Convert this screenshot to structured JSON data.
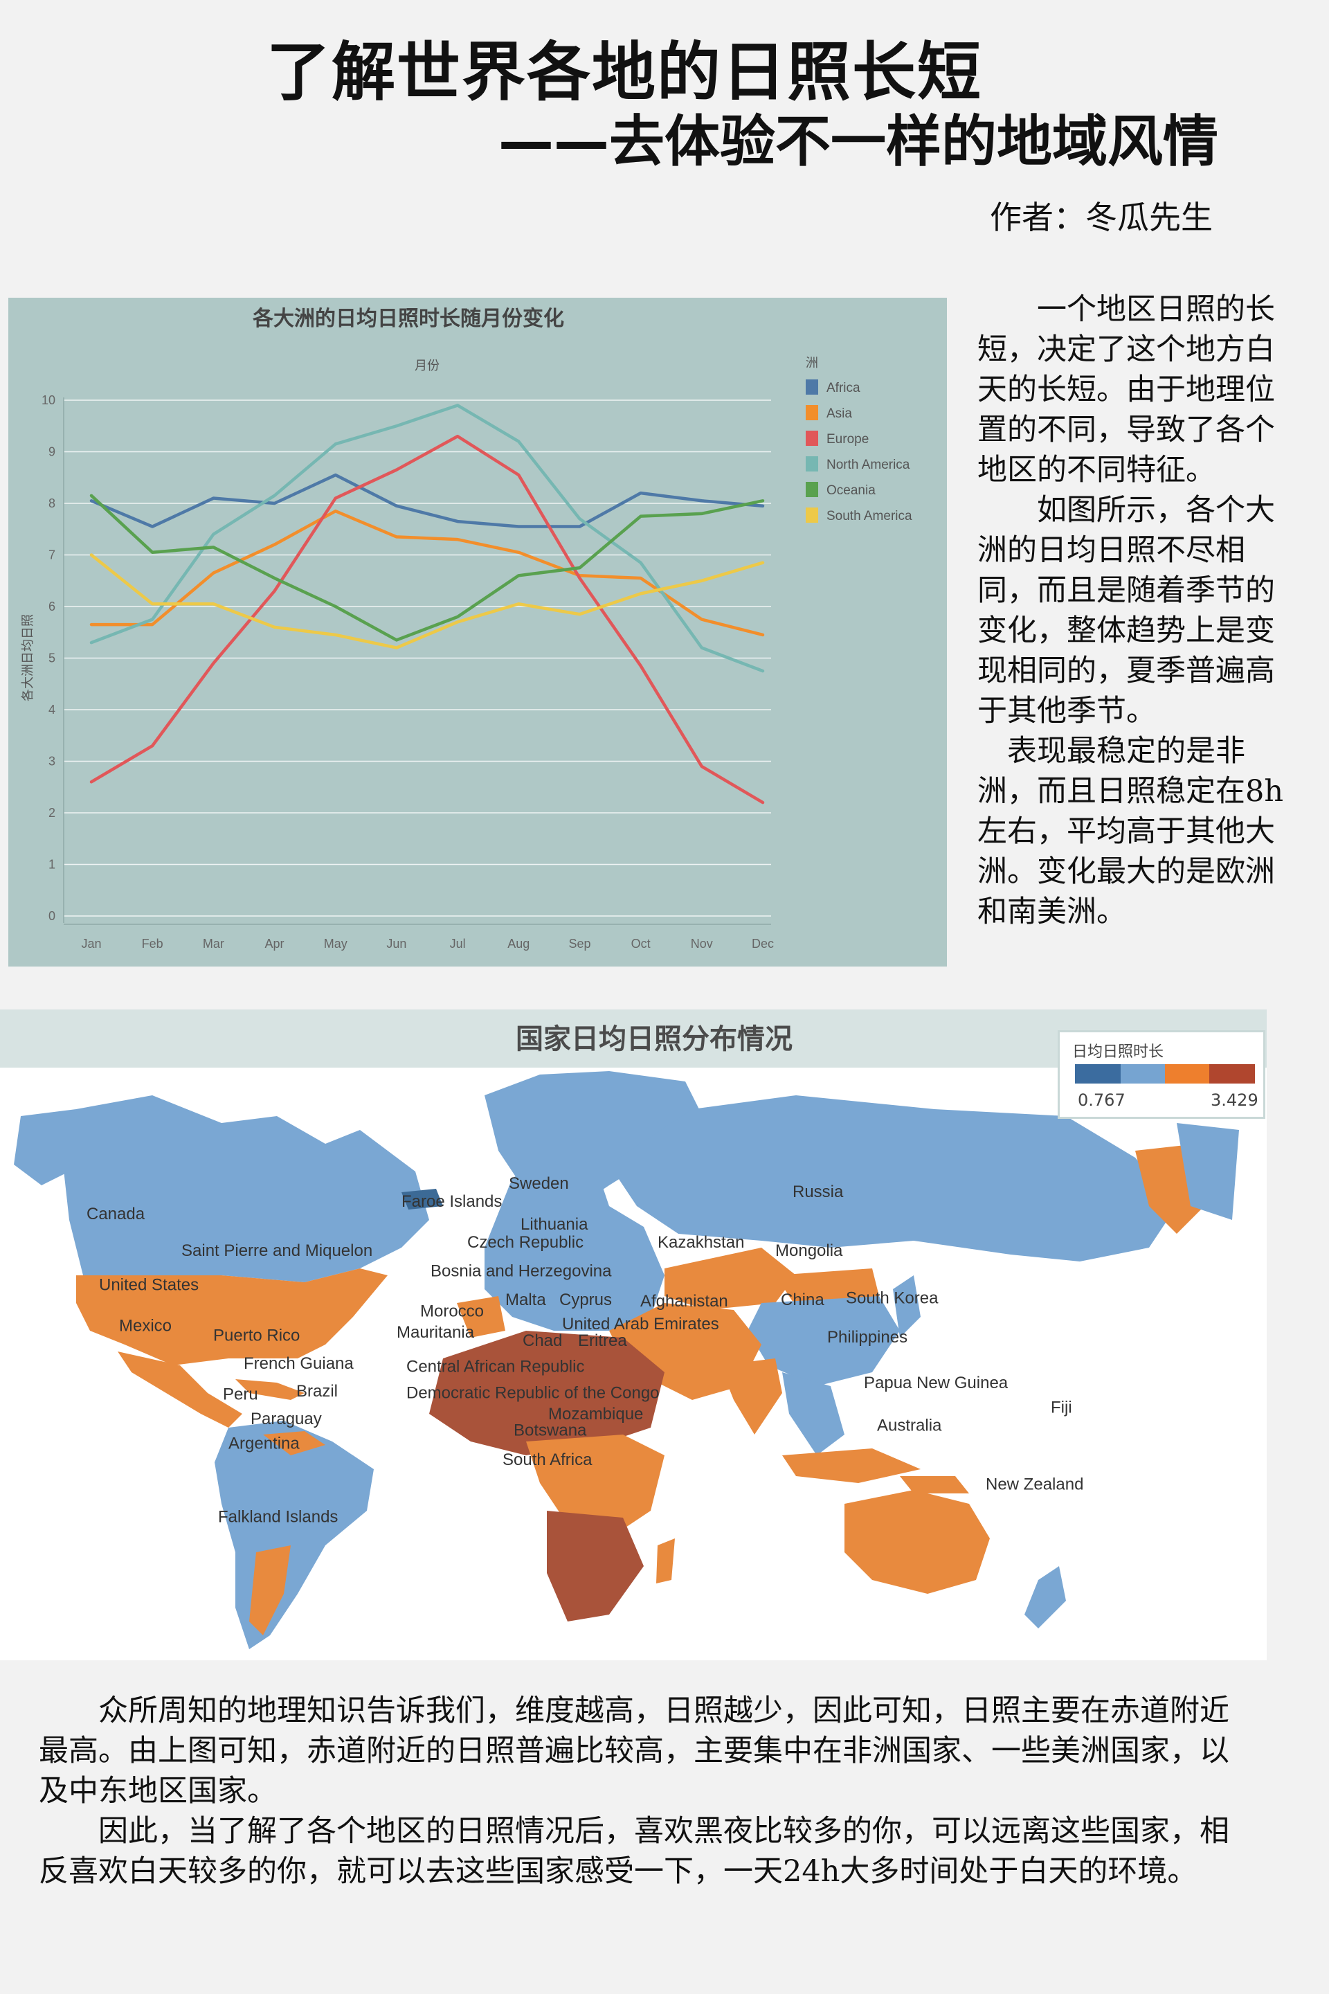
{
  "header": {
    "title": "了解世界各地的日照长短",
    "subtitle": "——去体验不一样的地域风情",
    "author": "作者：冬瓜先生"
  },
  "intro": {
    "paragraphs": [
      "　　一个地区日照的长短，决定了这个地方白天的长短。由于地理位置的不同，导致了各个地区的不同特征。",
      "　　如图所示，各个大洲的日均日照不尽相同，而且是随着季节的变化，整体趋势上是变现相同的，夏季普遍高于其他季节。",
      "　表现最稳定的是非洲，而且日照稳定在8h左右，平均高于其他大洲。变化最大的是欧洲和南美洲。"
    ]
  },
  "chart_data": {
    "type": "line",
    "title": "各大洲的日均日照时长随月份变化",
    "xlabel": "月份",
    "ylabel": "各大洲日均日照",
    "legend_title": "洲",
    "legend_position": "right",
    "categories": [
      "Jan",
      "Feb",
      "Mar",
      "Apr",
      "May",
      "Jun",
      "Jul",
      "Aug",
      "Sep",
      "Oct",
      "Nov",
      "Dec"
    ],
    "ylim": [
      0,
      10
    ],
    "yticks": [
      0,
      1,
      2,
      3,
      4,
      5,
      6,
      7,
      8,
      9,
      10
    ],
    "grid": true,
    "series": [
      {
        "name": "Africa",
        "color": "#4e79a7",
        "values": [
          8.05,
          7.55,
          8.1,
          8.0,
          8.55,
          7.95,
          7.65,
          7.55,
          7.55,
          8.2,
          8.05,
          7.95
        ]
      },
      {
        "name": "Asia",
        "color": "#f28e2b",
        "values": [
          5.65,
          5.65,
          6.65,
          7.2,
          7.85,
          7.35,
          7.3,
          7.05,
          6.6,
          6.55,
          5.75,
          5.45
        ]
      },
      {
        "name": "Europe",
        "color": "#e15759",
        "values": [
          2.6,
          3.3,
          4.9,
          6.3,
          8.1,
          8.65,
          9.3,
          8.55,
          6.55,
          4.85,
          2.9,
          2.2
        ]
      },
      {
        "name": "North America",
        "color": "#76b7b2",
        "values": [
          5.3,
          5.75,
          7.4,
          8.15,
          9.15,
          9.5,
          9.9,
          9.2,
          7.7,
          6.85,
          5.2,
          4.75
        ]
      },
      {
        "name": "Oceania",
        "color": "#59a14f",
        "values": [
          8.15,
          7.05,
          7.15,
          6.55,
          6.0,
          5.35,
          5.8,
          6.6,
          6.75,
          7.75,
          7.8,
          8.05
        ]
      },
      {
        "name": "South America",
        "color": "#edc948",
        "values": [
          7.0,
          6.05,
          6.05,
          5.6,
          5.45,
          5.2,
          5.7,
          6.05,
          5.85,
          6.25,
          6.5,
          6.85
        ]
      }
    ]
  },
  "map": {
    "title": "国家日均日照分布情况",
    "legend": {
      "title": "日均日照时长",
      "min": "0.767",
      "max": "3.429",
      "colors": [
        "#3b6c9f",
        "#76a4d1",
        "#ee7f2d",
        "#b0462e"
      ]
    },
    "colors": {
      "low": "#7aa7d3",
      "mid": "#e88a3e",
      "high": "#a9533a",
      "dark": "#3c6a96"
    },
    "labels": [
      "Sweden",
      "Faroe Islands",
      "Canada",
      "Lithuania",
      "Czech Republic",
      "Saint Pierre and Miquelon",
      "Bosnia and Herzegovina",
      "Kazakhstan",
      "Mongolia",
      "Russia",
      "United States",
      "Malta",
      "Cyprus",
      "Afghanistan",
      "China",
      "South Korea",
      "Morocco",
      "Mexico",
      "Puerto Rico",
      "Mauritania",
      "United Arab Emirates",
      "Chad",
      "Eritrea",
      "Philippines",
      "Central African Republic",
      "French Guiana",
      "Democratic Republic of the Congo",
      "Peru",
      "Brazil",
      "Papua New Guinea",
      "Mozambique",
      "Paraguay",
      "Botswana",
      "Fiji",
      "Argentina",
      "South Africa",
      "Australia",
      "New Zealand",
      "Falkland Islands"
    ]
  },
  "body": {
    "paragraphs": [
      "　　众所周知的地理知识告诉我们，维度越高，日照越少，因此可知，日照主要在赤道附近最高。由上图可知，赤道附近的日照普遍比较高，主要集中在非洲国家、一些美洲国家，以及中东地区国家。",
      "　　因此，当了解了各个地区的日照情况后，喜欢黑夜比较多的你，可以远离这些国家，相反喜欢白天较多的你，就可以去这些国家感受一下，一天24h大多时间处于白天的环境。"
    ]
  }
}
